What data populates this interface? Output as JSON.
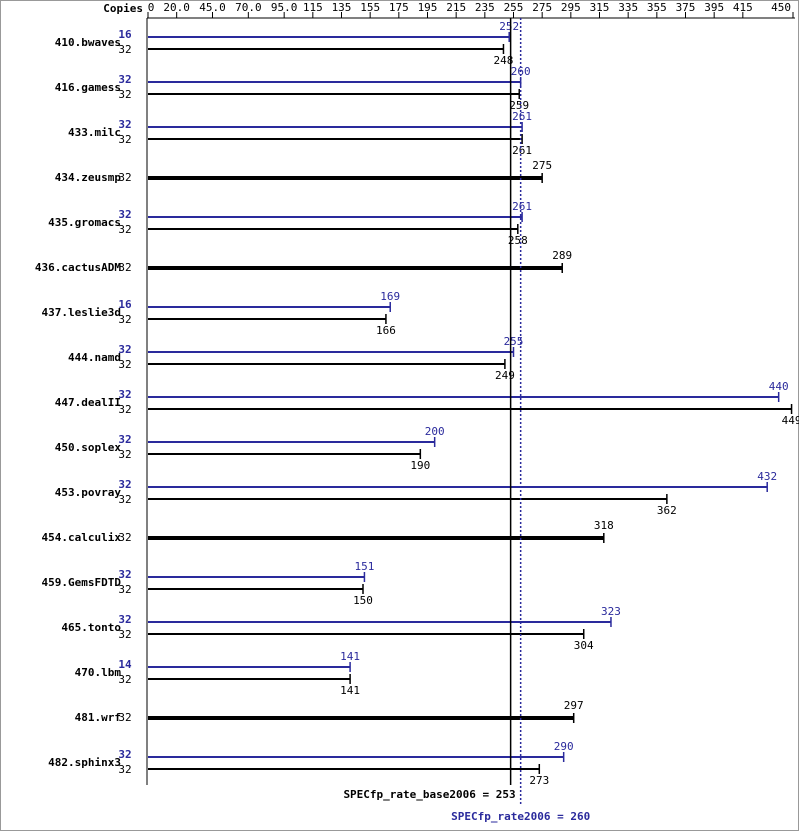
{
  "chart_data": {
    "type": "bar",
    "orientation": "horizontal",
    "axis_label": "Copies",
    "categories": [
      "410.bwaves",
      "416.gamess",
      "433.milc",
      "434.zeusmp",
      "435.gromacs",
      "436.cactusADM",
      "437.leslie3d",
      "444.namd",
      "447.dealII",
      "450.soplex",
      "453.povray",
      "454.calculix",
      "459.GemsFDTD",
      "465.tonto",
      "470.lbm",
      "481.wrf",
      "482.sphinx3"
    ],
    "series": [
      {
        "color": "#2a2a9c",
        "copies": [
          16,
          32,
          32,
          null,
          32,
          null,
          16,
          32,
          32,
          32,
          32,
          null,
          32,
          32,
          14,
          null,
          32
        ],
        "values": [
          252,
          260,
          261,
          null,
          261,
          null,
          169,
          255,
          440,
          200,
          432,
          null,
          151,
          323,
          141,
          null,
          290
        ]
      },
      {
        "color": "#000000",
        "copies": [
          32,
          32,
          32,
          32,
          32,
          32,
          32,
          32,
          32,
          32,
          32,
          32,
          32,
          32,
          32,
          32,
          32
        ],
        "values": [
          248,
          259,
          261,
          275,
          258,
          289,
          166,
          249,
          449,
          190,
          362,
          318,
          150,
          304,
          141,
          297,
          273
        ]
      }
    ],
    "xlim": [
      0,
      450
    ],
    "xticks": [
      0,
      {
        "value": 20,
        "label": "20.0"
      },
      {
        "value": 45,
        "label": "45.0"
      },
      {
        "value": 70,
        "label": "70.0"
      },
      {
        "value": 95,
        "label": "95.0"
      },
      115,
      135,
      155,
      175,
      195,
      215,
      235,
      255,
      275,
      295,
      315,
      335,
      355,
      375,
      395,
      415,
      450
    ],
    "summary": [
      {
        "text": "SPECfp_rate_base2006 = 253",
        "value": 253,
        "color": "#000000"
      },
      {
        "text": "SPECfp_rate2006 = 260",
        "value": 260,
        "color": "#2a2a9c"
      }
    ]
  }
}
